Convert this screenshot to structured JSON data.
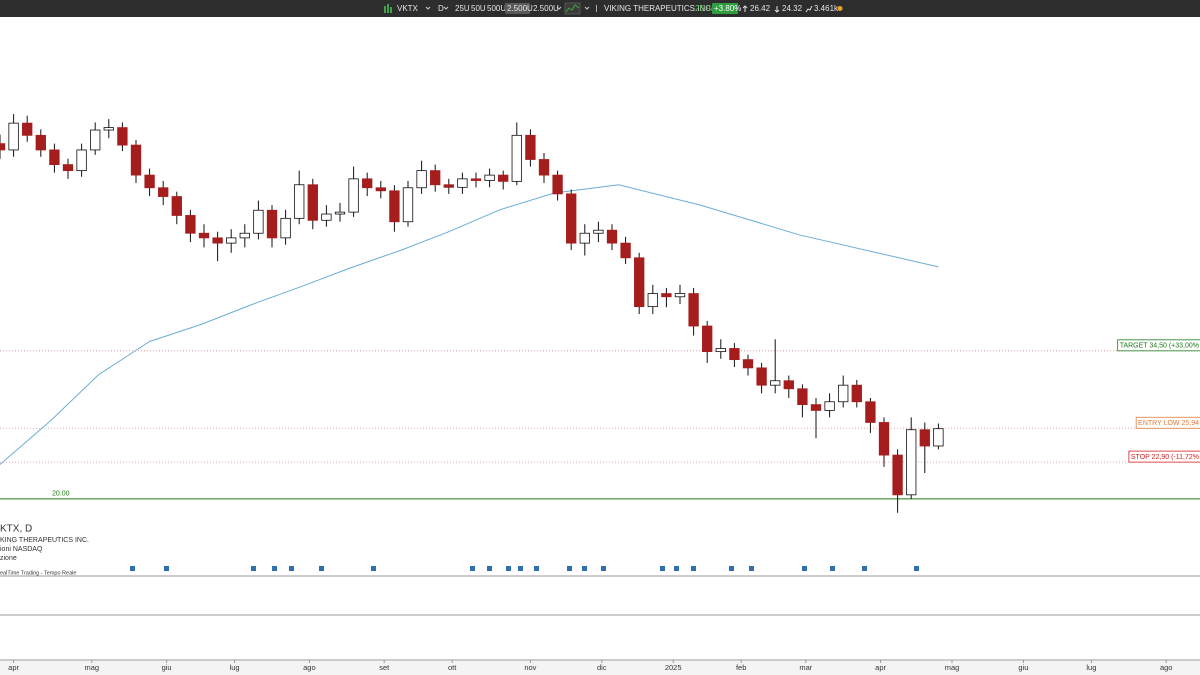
{
  "toolbar": {
    "symbol": "VKTX",
    "interval": "D",
    "sizes": [
      "25U",
      "50U",
      "500U",
      "2.500U"
    ],
    "size_select": "2.500U",
    "name": "VIKING THERAPEUTICS INC.",
    "last": "25.94",
    "change": "+3.80%",
    "high": "26.42",
    "low": "24.32",
    "volume": "3.461k"
  },
  "legend": [
    "KTX, D",
    "KING THERAPEUTICS INC.",
    "ioni NASDAQ",
    "zione",
    "ealTime Trading - Tempo Reale"
  ],
  "chart_data": {
    "type": "candlestick",
    "x": [
      0,
      4,
      8,
      12,
      16,
      20,
      24,
      28,
      32,
      36,
      40,
      44,
      48,
      52,
      56,
      60,
      64,
      68,
      72,
      76,
      80,
      84,
      88,
      92,
      96,
      100,
      104,
      108,
      112,
      116,
      120,
      124,
      128,
      132,
      136,
      140,
      144,
      148,
      152,
      156,
      160,
      164,
      168,
      172,
      176,
      180,
      184,
      188,
      192,
      196,
      200,
      204,
      208,
      212,
      216,
      220,
      224,
      228,
      232,
      236,
      240,
      244,
      248,
      252,
      256,
      260,
      264,
      268,
      272,
      276
    ],
    "open": [
      74.0,
      72.3,
      79.8,
      76.3,
      72.3,
      68.5,
      67.0,
      72.3,
      77.8,
      78.5,
      73.6,
      65.9,
      62.9,
      60.9,
      56.8,
      53.2,
      52.3,
      51.3,
      52.3,
      53.2,
      57.9,
      52.3,
      56.2,
      63.6,
      55.8,
      57.1,
      57.5,
      65.0,
      62.9,
      62.2,
      55.5,
      62.9,
      67.0,
      63.6,
      63.0,
      65.0,
      64.6,
      65.9,
      64.4,
      76.3,
      69.8,
      65.9,
      61.5,
      51.3,
      53.2,
      53.8,
      51.3,
      48.6,
      40.6,
      42.6,
      42.1,
      42.6,
      37.8,
      34.4,
      34.8,
      33.4,
      32.4,
      30.4,
      30.9,
      30.0,
      28.3,
      27.7,
      28.6,
      30.4,
      28.6,
      26.5,
      23.5,
      20.3,
      25.8,
      24.3
    ],
    "high": [
      76.5,
      82.5,
      82.0,
      78.0,
      74.0,
      70.0,
      74.0,
      80.0,
      81.0,
      80.0,
      75.0,
      67.5,
      64.5,
      62.0,
      58.0,
      55.0,
      53.5,
      54.0,
      55.0,
      60.0,
      59.0,
      58.0,
      67.0,
      65.0,
      59.0,
      59.5,
      68.0,
      66.5,
      64.5,
      63.5,
      64.5,
      69.5,
      68.5,
      65.0,
      66.5,
      66.5,
      67.5,
      67.0,
      80.0,
      78.0,
      71.5,
      67.0,
      62.5,
      55.0,
      55.5,
      55.0,
      52.5,
      49.5,
      44.0,
      43.5,
      44.0,
      43.5,
      38.5,
      36.0,
      35.5,
      34.0,
      33.0,
      36.0,
      31.5,
      30.5,
      29.0,
      29.5,
      31.5,
      31.0,
      29.0,
      27.0,
      24.0,
      27.0,
      26.5,
      26.4
    ],
    "low": [
      70.0,
      70.5,
      74.5,
      70.5,
      66.5,
      65.0,
      65.5,
      71.0,
      75.5,
      72.0,
      64.0,
      61.0,
      59.0,
      55.0,
      51.5,
      50.5,
      48.0,
      49.5,
      50.5,
      52.0,
      50.5,
      51.0,
      55.0,
      54.0,
      54.5,
      55.5,
      56.5,
      61.0,
      60.5,
      53.5,
      54.5,
      61.5,
      62.0,
      61.5,
      61.5,
      63.0,
      63.0,
      62.5,
      63.5,
      68.0,
      64.0,
      60.0,
      50.0,
      49.0,
      51.5,
      50.0,
      47.5,
      39.5,
      39.5,
      40.5,
      41.0,
      36.5,
      33.0,
      33.5,
      32.5,
      31.5,
      29.5,
      29.5,
      29.0,
      27.0,
      25.0,
      27.0,
      28.0,
      28.0,
      25.5,
      22.5,
      19.0,
      20.0,
      22.0,
      24.0
    ],
    "close": [
      72.3,
      79.8,
      76.3,
      72.3,
      68.5,
      67.0,
      72.3,
      77.8,
      78.5,
      73.6,
      65.9,
      62.9,
      60.9,
      56.8,
      53.2,
      52.3,
      51.3,
      52.3,
      53.2,
      57.9,
      52.3,
      56.2,
      63.6,
      55.8,
      57.1,
      57.5,
      65.0,
      62.9,
      62.2,
      55.5,
      62.9,
      67.0,
      63.6,
      63.0,
      65.0,
      64.6,
      65.9,
      64.4,
      76.3,
      69.8,
      65.9,
      61.5,
      51.3,
      53.2,
      53.8,
      51.3,
      48.6,
      40.6,
      42.6,
      42.1,
      42.6,
      37.8,
      34.4,
      34.8,
      33.4,
      32.4,
      30.4,
      30.9,
      30.0,
      28.3,
      27.7,
      28.6,
      30.4,
      28.6,
      26.5,
      23.5,
      20.3,
      25.8,
      24.3,
      25.9
    ],
    "up_color": "#ffffff",
    "down_color": "#a51d1d",
    "ylim": [
      17,
      110
    ],
    "log_scale": true,
    "xlim": [
      0,
      345
    ],
    "xticks": [
      {
        "value": 4,
        "label": "apr"
      },
      {
        "value": 27,
        "label": "mag"
      },
      {
        "value": 49,
        "label": "giu"
      },
      {
        "value": 69,
        "label": "lug"
      },
      {
        "value": 91,
        "label": "ago"
      },
      {
        "value": 113,
        "label": "set"
      },
      {
        "value": 133,
        "label": "ott"
      },
      {
        "value": 156,
        "label": "nov"
      },
      {
        "value": 177,
        "label": "dic"
      },
      {
        "value": 198,
        "label": "2025"
      },
      {
        "value": 218,
        "label": "feb"
      },
      {
        "value": 237,
        "label": "mar"
      },
      {
        "value": 259,
        "label": "apr"
      },
      {
        "value": 280,
        "label": "mag"
      },
      {
        "value": 301,
        "label": "giu"
      },
      {
        "value": 321,
        "label": "lug"
      },
      {
        "value": 343,
        "label": "ago"
      }
    ],
    "ma": {
      "color": "#6aaed6",
      "x": [
        0,
        15,
        29,
        44,
        59,
        74,
        88,
        103,
        118,
        132,
        147,
        163,
        182,
        206,
        235,
        276
      ],
      "values": [
        22.7,
        26.7,
        31.6,
        35.7,
        38.0,
        40.9,
        43.6,
        46.8,
        50.0,
        53.5,
        58.0,
        61.7,
        63.6,
        59.0,
        52.9,
        47.0
      ]
    },
    "levels": [
      {
        "value": 34.5,
        "label": "TARGET 34,50 (+33,00%",
        "color": "#1a7a1a"
      },
      {
        "value": 25.94,
        "label": "ENTRY LOW 25,94",
        "color": "#e07b39"
      },
      {
        "value": 22.9,
        "label": "STOP 22,90 (-11,72%",
        "color": "#d62020"
      },
      {
        "value": 20,
        "label": "20.00",
        "color": "#1a7a1a"
      }
    ]
  }
}
